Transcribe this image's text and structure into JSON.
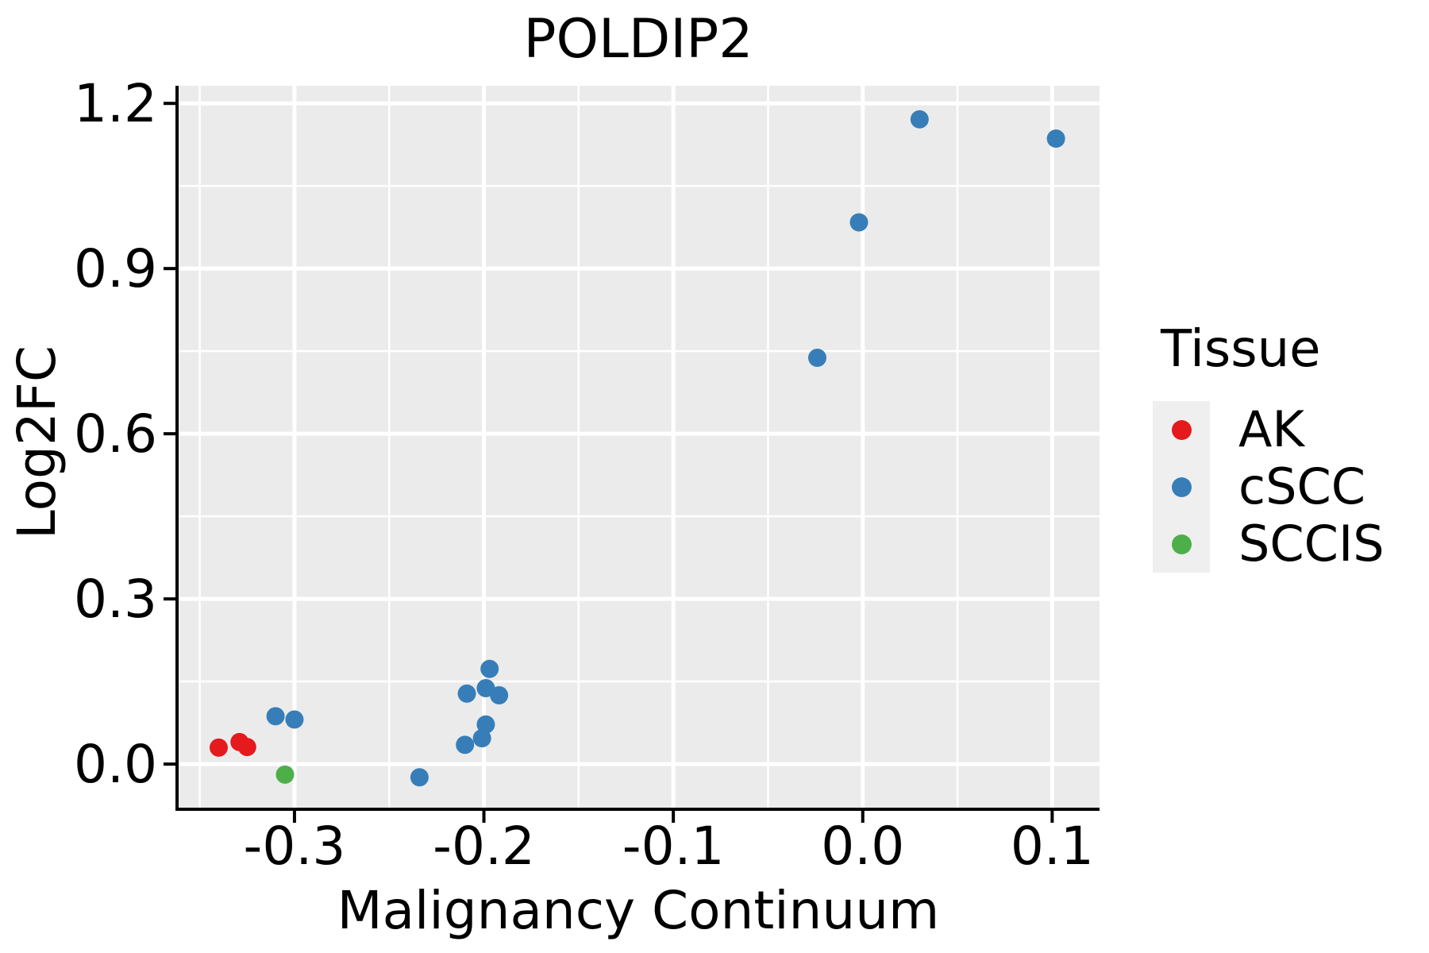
{
  "title": "POLDIP2",
  "axes": {
    "x": {
      "label": "Malignancy Continuum",
      "tick_values": [
        -0.3,
        -0.2,
        -0.1,
        0.0,
        0.1
      ],
      "tick_labels": [
        "-0.3",
        "-0.2",
        "-0.1",
        "0.0",
        "0.1"
      ],
      "minor_ticks": [
        -0.35,
        -0.25,
        -0.15,
        -0.05,
        0.05
      ]
    },
    "y": {
      "label": "Log2FC",
      "tick_values": [
        0.0,
        0.3,
        0.6,
        0.9,
        1.2
      ],
      "tick_labels": [
        "0.0",
        "0.3",
        "0.6",
        "0.9",
        "1.2"
      ],
      "minor_ticks": [
        0.15,
        0.45,
        0.75,
        1.05
      ]
    }
  },
  "legend": {
    "title": "Tissue",
    "items": [
      {
        "label": "AK",
        "color": "#E41A1C"
      },
      {
        "label": "cSCC",
        "color": "#377EB8"
      },
      {
        "label": "SCCIS",
        "color": "#4DAF4A"
      }
    ]
  },
  "chart_data": {
    "type": "scatter",
    "title": "POLDIP2",
    "xlabel": "Malignancy Continuum",
    "ylabel": "Log2FC",
    "xlim": [
      -0.362,
      0.125
    ],
    "ylim": [
      -0.082,
      1.232
    ],
    "grid": "on",
    "legend_position": "right",
    "series": [
      {
        "name": "AK",
        "color": "#E41A1C",
        "points": [
          [
            -0.34,
            0.03
          ],
          [
            -0.329,
            0.04
          ],
          [
            -0.325,
            0.031
          ]
        ]
      },
      {
        "name": "cSCC",
        "color": "#377EB8",
        "points": [
          [
            0.03,
            1.171
          ],
          [
            0.102,
            1.136
          ],
          [
            -0.002,
            0.984
          ],
          [
            -0.024,
            0.738
          ],
          [
            -0.197,
            0.173
          ],
          [
            -0.199,
            0.138
          ],
          [
            -0.209,
            0.128
          ],
          [
            -0.192,
            0.125
          ],
          [
            -0.199,
            0.072
          ],
          [
            -0.201,
            0.047
          ],
          [
            -0.21,
            0.035
          ],
          [
            -0.234,
            -0.024
          ],
          [
            -0.31,
            0.087
          ],
          [
            -0.3,
            0.081
          ]
        ]
      },
      {
        "name": "SCCIS",
        "color": "#4DAF4A",
        "points": [
          [
            -0.305,
            -0.019
          ]
        ]
      }
    ],
    "styles": {
      "panel_bg": "#EBEBEB",
      "grid_color": "#FFFFFF",
      "axis_color": "#000000",
      "text_color": "#000000",
      "point_radius_px": 11.5
    }
  }
}
